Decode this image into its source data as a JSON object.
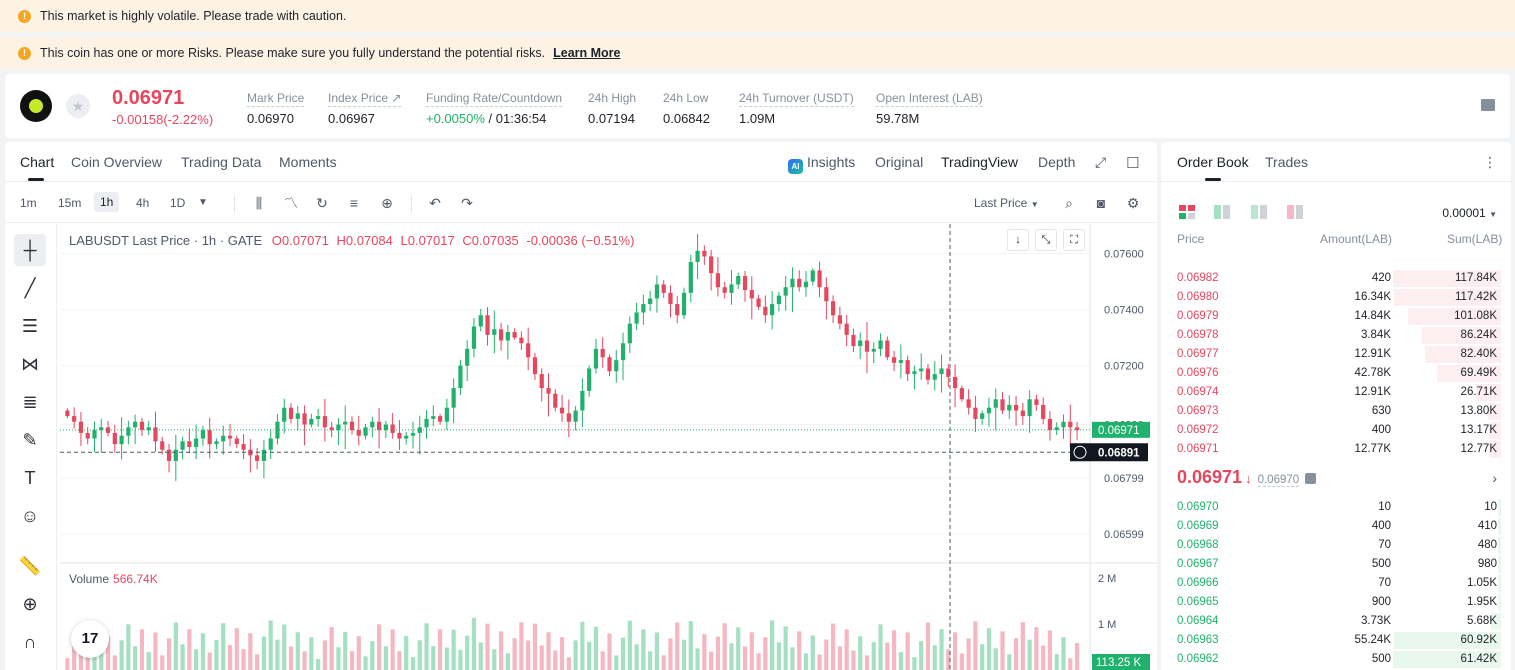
{
  "alerts": {
    "volatile": "This market is highly volatile. Please trade with caution.",
    "risks": "This coin has one or more Risks. Please make sure you fully understand the potential risks.",
    "learn_more": "Learn More"
  },
  "ticker": {
    "last_price": "0.06971",
    "change": "-0.00158(-2.22%)",
    "mark_price_label": "Mark Price",
    "mark_price": "0.06970",
    "index_price_label": "Index Price",
    "index_price": "0.06967",
    "funding_label": "Funding Rate/Countdown",
    "funding_rate": "+0.0050%",
    "countdown": "/ 01:36:54",
    "high_label": "24h High",
    "high": "0.07194",
    "low_label": "24h Low",
    "low": "0.06842",
    "turnover_label": "24h Turnover (USDT)",
    "turnover": "1.09M",
    "oi_label": "Open Interest (LAB)",
    "oi": "59.78M"
  },
  "chart_tabs": {
    "chart": "Chart",
    "overview": "Coin Overview",
    "trading_data": "Trading Data",
    "moments": "Moments",
    "insights": "Insights",
    "original": "Original",
    "tradingview": "TradingView",
    "depth": "Depth"
  },
  "timeframes": [
    "1m",
    "15m",
    "1h",
    "4h",
    "1D"
  ],
  "price_source": "Last Price",
  "legend": {
    "symbol": "LABUSDT Last Price · 1h · GATE",
    "open": "O0.07071",
    "high": "H0.07084",
    "low": "L0.07017",
    "close": "C0.07035",
    "change": "-0.00036 (−0.51%)"
  },
  "volume": {
    "label": "Volume",
    "value": "566.74K"
  },
  "axis": {
    "price_ticks": [
      "0.07600",
      "0.07400",
      "0.07200",
      "0.06990",
      "0.06799",
      "0.06599"
    ],
    "volume_ticks": [
      "2 M",
      "1 M"
    ],
    "last_tag": "0.06971",
    "cross_tag": "0.06891",
    "vol_tag": "113.25 K"
  },
  "colors": {
    "up": "#20b26c",
    "down": "#e5475f"
  },
  "chart_data": {
    "type": "candlestick",
    "symbol": "LABUSDT",
    "interval": "1h",
    "ylim": [
      0.0651,
      0.0767
    ],
    "close_series": [
      0.0702,
      0.07,
      0.0696,
      0.0694,
      0.0697,
      0.0698,
      0.0696,
      0.0692,
      0.0695,
      0.0698,
      0.07,
      0.0697,
      0.0698,
      0.0693,
      0.069,
      0.0686,
      0.069,
      0.0693,
      0.0691,
      0.0694,
      0.0697,
      0.0692,
      0.0693,
      0.0695,
      0.0694,
      0.0692,
      0.069,
      0.0688,
      0.0686,
      0.069,
      0.0694,
      0.07,
      0.0705,
      0.0701,
      0.0703,
      0.0699,
      0.0701,
      0.0702,
      0.0698,
      0.0697,
      0.0699,
      0.07,
      0.0697,
      0.0695,
      0.0698,
      0.07,
      0.0697,
      0.0699,
      0.0696,
      0.0694,
      0.0695,
      0.0696,
      0.0698,
      0.0701,
      0.0702,
      0.07,
      0.0705,
      0.0712,
      0.072,
      0.0726,
      0.0734,
      0.0738,
      0.0731,
      0.0733,
      0.0729,
      0.0732,
      0.073,
      0.0728,
      0.0723,
      0.0717,
      0.0712,
      0.071,
      0.0705,
      0.0703,
      0.07,
      0.0704,
      0.0711,
      0.0719,
      0.0726,
      0.0723,
      0.0718,
      0.0722,
      0.0728,
      0.0735,
      0.0739,
      0.0742,
      0.0744,
      0.0749,
      0.0746,
      0.0742,
      0.0738,
      0.0746,
      0.0757,
      0.0761,
      0.0759,
      0.0753,
      0.0748,
      0.0746,
      0.0749,
      0.0752,
      0.0747,
      0.0744,
      0.0741,
      0.0738,
      0.0742,
      0.0745,
      0.0748,
      0.0751,
      0.0748,
      0.075,
      0.0754,
      0.0748,
      0.0743,
      0.0738,
      0.0735,
      0.0731,
      0.0727,
      0.0729,
      0.0725,
      0.0726,
      0.0729,
      0.0723,
      0.0721,
      0.0722,
      0.0717,
      0.0718,
      0.0719,
      0.0715,
      0.0717,
      0.0719,
      0.0716,
      0.0712,
      0.0708,
      0.0705,
      0.0701,
      0.0703,
      0.0705,
      0.0708,
      0.0704,
      0.0706,
      0.0704,
      0.0702,
      0.0708,
      0.0706,
      0.0701,
      0.0697,
      0.0698,
      0.07,
      0.0698,
      0.0697
    ]
  },
  "orderbook": {
    "tab_book": "Order Book",
    "tab_trades": "Trades",
    "precision": "0.00001",
    "col_price": "Price",
    "col_amount": "Amount(LAB)",
    "col_sum": "Sum(LAB)",
    "asks": [
      {
        "price": "0.06982",
        "amount": "420",
        "sum": "117.84K",
        "depth": 1.0
      },
      {
        "price": "0.06980",
        "amount": "16.34K",
        "sum": "117.42K",
        "depth": 0.99
      },
      {
        "price": "0.06979",
        "amount": "14.84K",
        "sum": "101.08K",
        "depth": 0.86
      },
      {
        "price": "0.06978",
        "amount": "3.84K",
        "sum": "86.24K",
        "depth": 0.73
      },
      {
        "price": "0.06977",
        "amount": "12.91K",
        "sum": "82.40K",
        "depth": 0.7
      },
      {
        "price": "0.06976",
        "amount": "42.78K",
        "sum": "69.49K",
        "depth": 0.59
      },
      {
        "price": "0.06974",
        "amount": "12.91K",
        "sum": "26.71K",
        "depth": 0.23
      },
      {
        "price": "0.06973",
        "amount": "630",
        "sum": "13.80K",
        "depth": 0.12
      },
      {
        "price": "0.06972",
        "amount": "400",
        "sum": "13.17K",
        "depth": 0.11
      },
      {
        "price": "0.06971",
        "amount": "12.77K",
        "sum": "12.77K",
        "depth": 0.11
      }
    ],
    "mid_price": "0.06971",
    "mid_mark": "0.06970",
    "bids": [
      {
        "price": "0.06970",
        "amount": "10",
        "sum": "10",
        "depth": 0.01
      },
      {
        "price": "0.06969",
        "amount": "400",
        "sum": "410",
        "depth": 0.01
      },
      {
        "price": "0.06968",
        "amount": "70",
        "sum": "480",
        "depth": 0.01
      },
      {
        "price": "0.06967",
        "amount": "500",
        "sum": "980",
        "depth": 0.02
      },
      {
        "price": "0.06966",
        "amount": "70",
        "sum": "1.05K",
        "depth": 0.02
      },
      {
        "price": "0.06965",
        "amount": "900",
        "sum": "1.95K",
        "depth": 0.03
      },
      {
        "price": "0.06964",
        "amount": "3.73K",
        "sum": "5.68K",
        "depth": 0.09
      },
      {
        "price": "0.06963",
        "amount": "55.24K",
        "sum": "60.92K",
        "depth": 0.99
      },
      {
        "price": "0.06962",
        "amount": "500",
        "sum": "61.42K",
        "depth": 1.0
      }
    ]
  }
}
